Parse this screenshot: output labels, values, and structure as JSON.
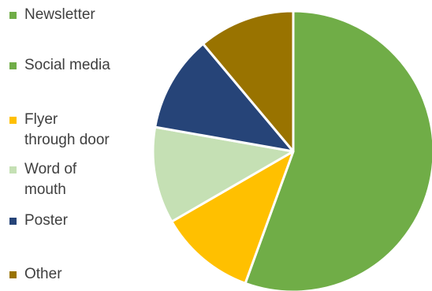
{
  "chart_data": {
    "type": "pie",
    "title": "",
    "series": [
      {
        "label": "Newsletter",
        "value": 0,
        "color": "#70ad47"
      },
      {
        "label": "Social media",
        "value": 55,
        "color": "#70ad47"
      },
      {
        "label": "Flyer\nthrough door",
        "value": 11,
        "color": "#ffc000"
      },
      {
        "label": "Word of\nmouth",
        "value": 11,
        "color": "#c5e0b4"
      },
      {
        "label": "Poster",
        "value": 11,
        "color": "#264478"
      },
      {
        "label": "Other",
        "value": 11,
        "color": "#997300"
      }
    ],
    "legend_position": "left",
    "start_angle_deg": 0,
    "direction": "clockwise"
  }
}
